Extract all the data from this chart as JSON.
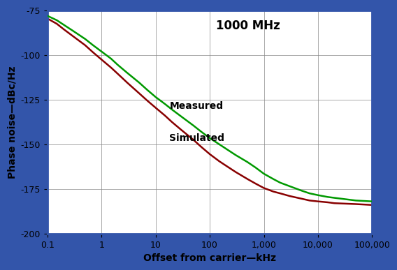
{
  "title": "1000 MHz",
  "xlabel": "Offset from carrier—kHz",
  "ylabel": "Phase noise—dBc/Hz",
  "xlim": [
    0.1,
    100000
  ],
  "ylim": [
    -200,
    -75
  ],
  "yticks": [
    -200,
    -175,
    -150,
    -125,
    -100,
    -75
  ],
  "xtick_labels": [
    "0.1",
    "1",
    "10",
    "100",
    "1,000",
    "10,000",
    "100,000"
  ],
  "xtick_vals": [
    0.1,
    1,
    10,
    100,
    1000,
    10000,
    100000
  ],
  "grid_color": "#888888",
  "background_color": "#ffffff",
  "border_color": "#3355aa",
  "measured_color": "#009900",
  "simulated_color": "#880000",
  "measured_label": "Measured",
  "simulated_label": "Simulated",
  "annotation_fontsize": 10,
  "label_fontsize": 10,
  "title_fontsize": 12,
  "tick_fontsize": 9,
  "x_data": [
    0.1,
    0.15,
    0.2,
    0.3,
    0.5,
    0.7,
    1.0,
    1.5,
    2.0,
    3.0,
    5.0,
    7.0,
    10.0,
    15.0,
    20.0,
    30.0,
    50.0,
    70.0,
    100.0,
    150.0,
    200.0,
    300.0,
    500.0,
    700.0,
    1000.0,
    1500.0,
    2000.0,
    3000.0,
    5000.0,
    7000.0,
    10000.0,
    15000.0,
    20000.0,
    50000.0,
    100000.0
  ],
  "measured_y": [
    -78.0,
    -80.5,
    -83.0,
    -86.5,
    -91.0,
    -94.5,
    -98.0,
    -102.0,
    -105.5,
    -110.0,
    -115.5,
    -119.5,
    -123.5,
    -127.5,
    -130.5,
    -134.5,
    -139.5,
    -143.0,
    -146.5,
    -150.0,
    -152.5,
    -156.0,
    -160.0,
    -163.0,
    -166.5,
    -169.5,
    -171.5,
    -173.5,
    -176.0,
    -177.5,
    -178.5,
    -179.5,
    -180.0,
    -181.5,
    -182.0
  ],
  "simulated_y": [
    -79.5,
    -82.5,
    -85.5,
    -89.5,
    -94.5,
    -98.5,
    -102.5,
    -107.0,
    -110.5,
    -115.5,
    -121.5,
    -125.5,
    -129.5,
    -134.0,
    -137.5,
    -142.0,
    -147.5,
    -151.5,
    -155.5,
    -159.5,
    -162.0,
    -165.5,
    -169.5,
    -172.0,
    -174.5,
    -176.5,
    -177.5,
    -179.0,
    -180.5,
    -181.5,
    -182.0,
    -182.5,
    -183.0,
    -183.5,
    -184.0
  ]
}
